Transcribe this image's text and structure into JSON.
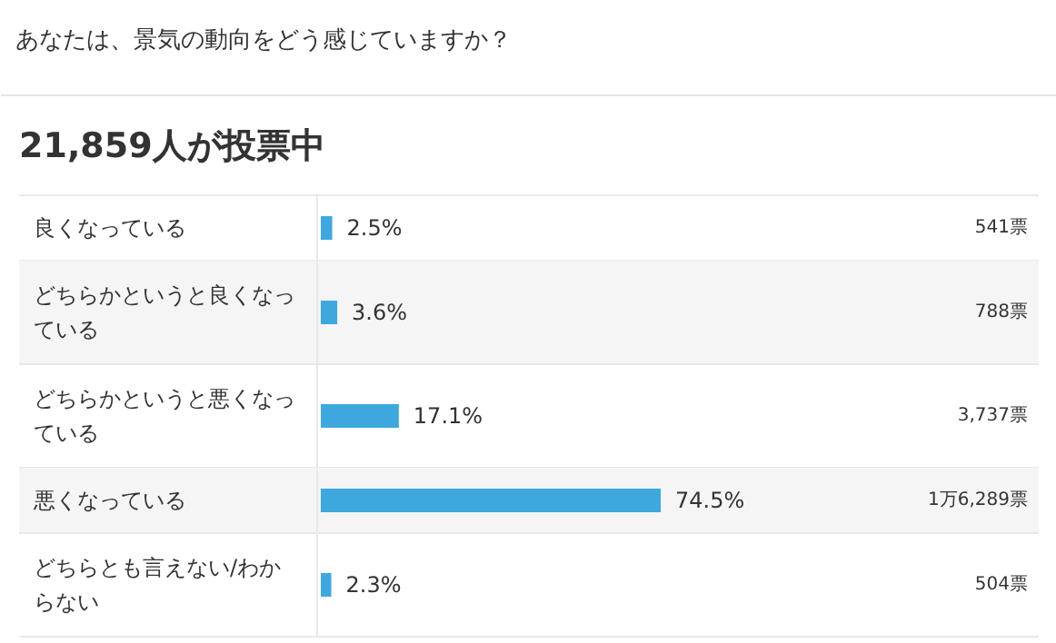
{
  "chart_data": {
    "type": "bar",
    "orientation": "horizontal",
    "title": "あなたは、景気の動向をどう感じていますか？",
    "subtitle": "21,859人が投票中",
    "categories": [
      "良くなっている",
      "どちらかというと良くなっている",
      "どちらかというと悪くなっている",
      "悪くなっている",
      "どちらとも言えない/わからない"
    ],
    "values": [
      2.5,
      3.6,
      17.1,
      74.5,
      2.3
    ],
    "value_labels": [
      "2.5%",
      "3.6%",
      "17.1%",
      "74.5%",
      "2.3%"
    ],
    "color": "#3ea8de",
    "grid": false,
    "annotations": [
      "541票",
      "788票",
      "3,737票",
      "1万6,289票",
      "504票"
    ]
  }
}
